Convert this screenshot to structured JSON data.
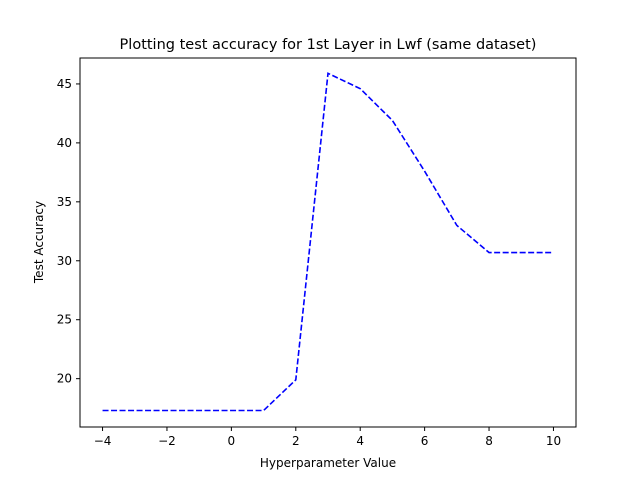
{
  "chart_data": {
    "type": "line",
    "title": "Plotting test accuracy for 1st Layer in Lwf (same dataset)",
    "xlabel": "Hyperparameter Value",
    "ylabel": "Test Accuracy",
    "xlim": [
      -4.7,
      10.7
    ],
    "ylim": [
      15.9,
      47.2
    ],
    "xticks": [
      -4,
      -2,
      0,
      2,
      4,
      6,
      8,
      10
    ],
    "xtick_labels": [
      "−4",
      "−2",
      "0",
      "2",
      "4",
      "6",
      "8",
      "10"
    ],
    "yticks": [
      20,
      25,
      30,
      35,
      40,
      45
    ],
    "ytick_labels": [
      "20",
      "25",
      "30",
      "35",
      "40",
      "45"
    ],
    "grid": false,
    "series": [
      {
        "color": "#0000ff",
        "line_style": "dashed",
        "x": [
          -4,
          -3,
          -2,
          -1,
          0,
          1,
          2,
          3,
          4,
          5,
          6,
          7,
          8,
          9,
          10
        ],
        "y": [
          17.3,
          17.3,
          17.3,
          17.3,
          17.3,
          17.3,
          19.9,
          45.9,
          44.6,
          41.9,
          37.6,
          33.0,
          30.7,
          30.7,
          30.7
        ]
      }
    ]
  }
}
